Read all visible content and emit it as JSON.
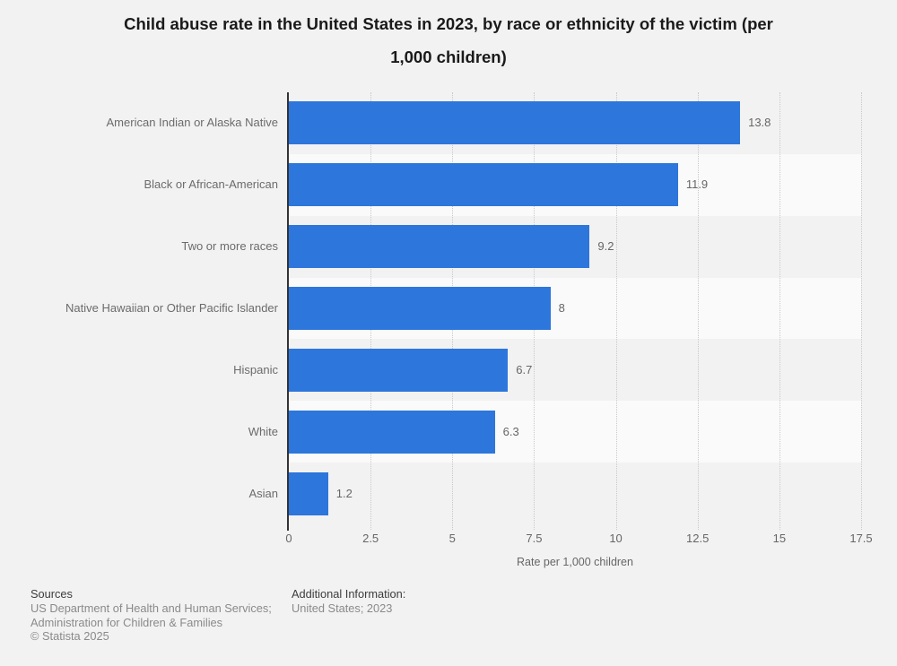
{
  "title": {
    "text": "Child abuse rate in the United States in 2023, by race or ethnicity of the victim (per 1,000 children)",
    "lines": [
      "Child abuse rate in the United States in 2023, by race or ethnicity of the victim (per",
      "1,000 children)"
    ]
  },
  "chart_data": {
    "type": "bar",
    "orientation": "horizontal",
    "title": "Child abuse rate in the United States in 2023, by race or ethnicity of the victim (per 1,000 children)",
    "categories": [
      "American Indian or Alaska Native",
      "Black or African-American",
      "Two or more races",
      "Native Hawaiian or Other Pacific Islander",
      "Hispanic",
      "White",
      "Asian"
    ],
    "values": [
      13.8,
      11.9,
      9.2,
      8,
      6.7,
      6.3,
      1.2
    ],
    "value_labels": [
      "13.8",
      "11.9",
      "9.2",
      "8",
      "6.7",
      "6.3",
      "1.2"
    ],
    "xlabel": "Rate per 1,000 children",
    "xlim": [
      0,
      17.5
    ],
    "xticks": [
      0,
      2.5,
      5,
      7.5,
      10,
      12.5,
      15,
      17.5
    ],
    "xtick_labels": [
      "0",
      "2.5",
      "5",
      "7.5",
      "10",
      "12.5",
      "15",
      "17.5"
    ],
    "bar_color": "#2d76dc",
    "stripe_light_color": "#fafafa",
    "grid": "dotted-vertical",
    "legend": "none"
  },
  "footer": {
    "sources_heading": "Sources",
    "sources_lines": [
      "US Department of Health and Human Services;",
      "Administration for Children & Families"
    ],
    "copyright": "© Statista 2025",
    "additional_heading": "Additional Information:",
    "additional_text": "United States; 2023"
  }
}
